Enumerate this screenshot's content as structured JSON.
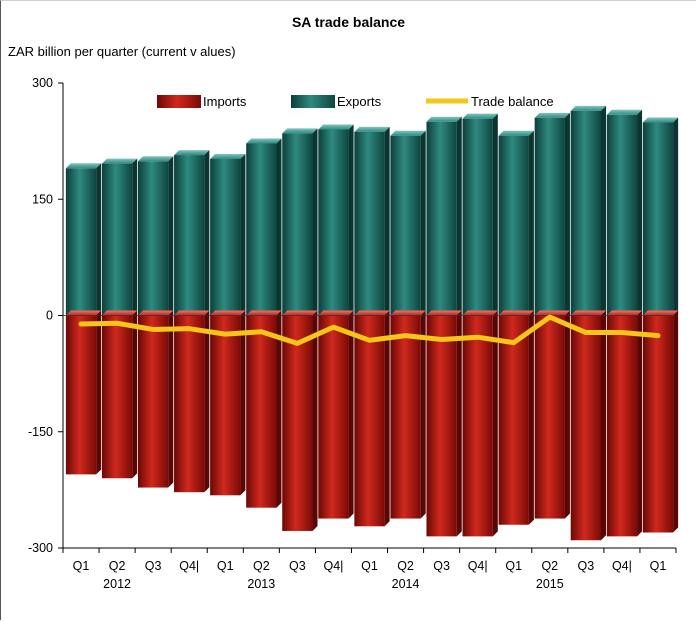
{
  "chart_data": {
    "type": "bar",
    "title": "SA trade balance",
    "subtitle": "ZAR billion per quarter (current v alues)",
    "ylim": [
      -300,
      300
    ],
    "yticks": [
      "300",
      "150",
      "0",
      "-150",
      "-300"
    ],
    "categories": [
      "Q1",
      "Q2",
      "Q3",
      "Q4|",
      "Q1",
      "Q2",
      "Q3",
      "Q4|",
      "Q1",
      "Q2",
      "Q3",
      "Q4|",
      "Q1",
      "Q2",
      "Q3",
      "Q4|",
      "Q1"
    ],
    "year_labels": [
      {
        "label": "2012",
        "index": 1
      },
      {
        "label": "2013",
        "index": 5
      },
      {
        "label": "2014",
        "index": 9
      },
      {
        "label": "2015",
        "index": 13
      }
    ],
    "series": [
      {
        "name": "Imports",
        "type": "bar",
        "color": "#b5150f",
        "values": [
          -205,
          -210,
          -222,
          -228,
          -232,
          -248,
          -278,
          -262,
          -272,
          -262,
          -285,
          -285,
          -270,
          -262,
          -290,
          -285,
          -280
        ]
      },
      {
        "name": "Exports",
        "type": "bar",
        "color": "#1d6f66",
        "values": [
          190,
          196,
          199,
          207,
          202,
          222,
          235,
          240,
          237,
          232,
          250,
          254,
          232,
          255,
          264,
          259,
          249
        ]
      },
      {
        "name": "Trade balance",
        "type": "line",
        "color": "#f5c518",
        "values": [
          -11,
          -10,
          -18,
          -17,
          -24,
          -21,
          -36,
          -15,
          -32,
          -26,
          -31,
          -28,
          -35,
          -2,
          -22,
          -22,
          -26
        ]
      }
    ],
    "legend": [
      "Imports",
      "Exports",
      "Trade balance"
    ],
    "legend_position": "top",
    "grid": false
  }
}
